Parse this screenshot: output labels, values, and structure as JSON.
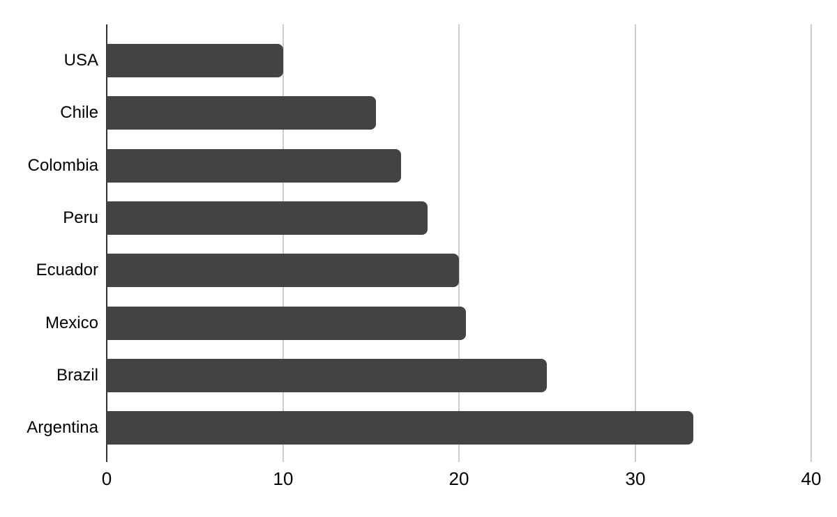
{
  "chart_data": {
    "type": "bar",
    "orientation": "horizontal",
    "title": "",
    "xlabel": "",
    "ylabel": "",
    "categories": [
      "USA",
      "Chile",
      "Colombia",
      "Peru",
      "Ecuador",
      "Mexico",
      "Brazil",
      "Argentina"
    ],
    "values": [
      10,
      15.3,
      16.7,
      18.2,
      20,
      20.4,
      25,
      33.3
    ],
    "xlim": [
      0,
      40
    ],
    "xticks": [
      0,
      10,
      20,
      30,
      40
    ],
    "grid": true,
    "legend": false,
    "colors": {
      "bar": "#434343",
      "gridline": "#cccccc",
      "axis_line": "#333333",
      "label_text": "#000000",
      "background": "#ffffff"
    }
  }
}
